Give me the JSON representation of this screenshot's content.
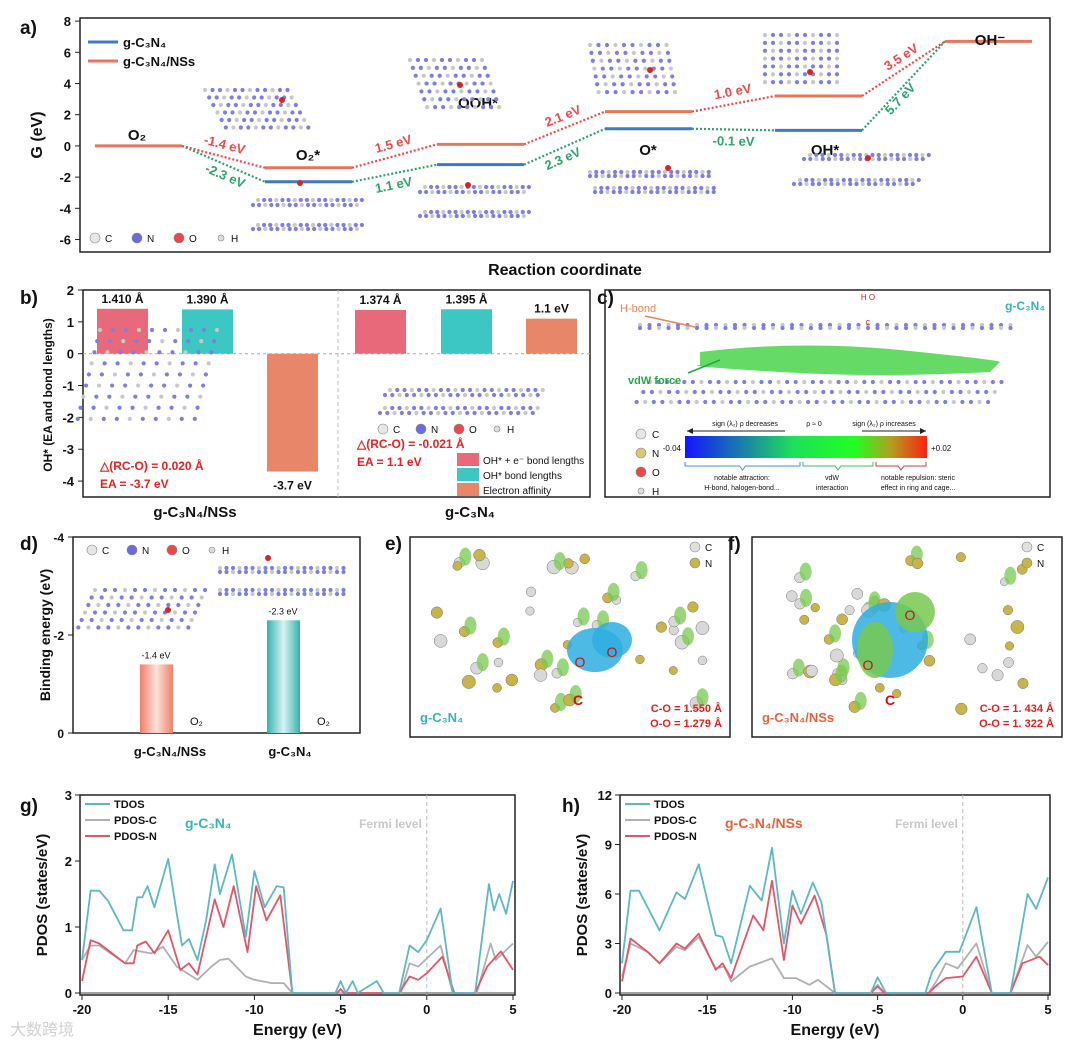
{
  "figure_labels": [
    "a)",
    "b)",
    "c)",
    "d)",
    "e)",
    "f)",
    "g)",
    "h)"
  ],
  "watermark": "大数跨境",
  "atom_legend": [
    "C",
    "N",
    "O",
    "H"
  ],
  "chart_data": [
    {
      "panel": "a",
      "type": "line",
      "title": "",
      "xlabel": "Reaction coordinate",
      "ylabel": "G (eV)",
      "ylim": [
        -6.8,
        8.2
      ],
      "yticks": [
        -6,
        -4,
        -2,
        0,
        2,
        4,
        6,
        8
      ],
      "states": [
        "O₂",
        "O₂*",
        "OOH*",
        "O*",
        "OH*",
        "OH⁻"
      ],
      "series": [
        {
          "name": "g-C₃N₄",
          "color": "#3d7cc4",
          "label_color": "#2ea36a",
          "values": [
            0,
            -2.3,
            -1.2,
            1.1,
            1.0,
            6.7
          ],
          "step_labels": [
            "-2.3 eV",
            "1.1 eV",
            "2.3 eV",
            "-0.1 eV",
            "5.7 eV"
          ]
        },
        {
          "name": "g-C₃N₄/NSs",
          "color": "#e8765c",
          "label_color": "#f0484a",
          "values": [
            0,
            -1.4,
            0.1,
            2.2,
            3.2,
            6.7
          ],
          "step_labels": [
            "-1.4 eV",
            "1.5 eV",
            "2.1 eV",
            "1.0 eV",
            "3.5 eV"
          ]
        }
      ],
      "legend": "top-left"
    },
    {
      "panel": "b",
      "type": "bar",
      "ylabel": "OH* (EA and bond lengths)",
      "ylim": [
        -4.5,
        2
      ],
      "yticks": [
        -4,
        -3,
        -2,
        -1,
        0,
        1,
        2
      ],
      "categories": [
        "g-C₃N₄/NSs",
        "g-C₃N₄"
      ],
      "series": [
        {
          "name": "OH* + e⁻ bond lengths",
          "color": "#e8697a",
          "values": [
            1.41,
            1.374
          ],
          "labels": [
            "1.410 Å",
            "1.374 Å"
          ]
        },
        {
          "name": "OH* bond lengths",
          "color": "#3cc6c4",
          "values": [
            1.39,
            1.395
          ],
          "labels": [
            "1.390 Å",
            "1.395 Å"
          ]
        },
        {
          "name": "Electron affinity",
          "color": "#e8866a",
          "values": [
            -3.7,
            1.1
          ],
          "labels": [
            "-3.7 eV",
            "1.1 eV"
          ]
        }
      ],
      "annotations": [
        [
          "△(RC-O) = 0.020 Å",
          "EA = -3.7 eV"
        ],
        [
          "△(RC-O) = -0.021 Å",
          "EA = 1.1 eV"
        ]
      ],
      "legend": "bottom-right"
    },
    {
      "panel": "d",
      "type": "bar",
      "ylabel": "Binding energy (eV)",
      "ylim": [
        0,
        -4
      ],
      "yticks": [
        0,
        -2,
        -4
      ],
      "categories": [
        "g-C₃N₄/NSs",
        "g-C₃N₄"
      ],
      "values": [
        -1.4,
        -2.3
      ],
      "labels": [
        "-1.4 eV",
        "-2.3 eV"
      ],
      "bar_note": "O₂",
      "colors": [
        "#ef8f78",
        "#4fc4c0"
      ]
    },
    {
      "panel": "g",
      "type": "line",
      "title": "g-C₃N₄",
      "title_color": "#3ab3b8",
      "xlabel": "Energy (eV)",
      "ylabel": "PDOS (states/eV)",
      "xlim": [
        -20,
        5
      ],
      "ylim": [
        0,
        3
      ],
      "xticks": [
        -20,
        -15,
        -10,
        -5,
        0,
        5
      ],
      "yticks": [
        0,
        1,
        2,
        3
      ],
      "annotation": "Fermi level",
      "series": [
        {
          "name": "TDOS",
          "color": "#5db8c4",
          "points": [
            [
              -20,
              0.5
            ],
            [
              -19.5,
              1.55
            ],
            [
              -19,
              1.55
            ],
            [
              -18.5,
              1.4
            ],
            [
              -17.6,
              0.95
            ],
            [
              -17.1,
              0.95
            ],
            [
              -16.8,
              1.45
            ],
            [
              -16.5,
              1.45
            ],
            [
              -16.2,
              1.62
            ],
            [
              -15.8,
              1.3
            ],
            [
              -15,
              2.03
            ],
            [
              -14.5,
              1.2
            ],
            [
              -14.2,
              0.72
            ],
            [
              -13.8,
              0.82
            ],
            [
              -13.3,
              0.5
            ],
            [
              -12.8,
              1.1
            ],
            [
              -12.3,
              1.95
            ],
            [
              -12,
              1.5
            ],
            [
              -11.3,
              2.1
            ],
            [
              -10.5,
              0.85
            ],
            [
              -10,
              1.85
            ],
            [
              -9.4,
              1.3
            ],
            [
              -8.7,
              1.62
            ],
            [
              -8.3,
              1.6
            ],
            [
              -7.8,
              0
            ],
            [
              -5.3,
              0
            ],
            [
              -5,
              0.18
            ],
            [
              -4.7,
              0
            ],
            [
              -4.3,
              0.18
            ],
            [
              -4,
              0
            ],
            [
              -2.9,
              0.18
            ],
            [
              -2.5,
              0
            ],
            [
              -1.6,
              0
            ],
            [
              -1,
              0.72
            ],
            [
              -0.5,
              0.62
            ],
            [
              0,
              0.8
            ],
            [
              0.8,
              1.28
            ],
            [
              1.5,
              0
            ],
            [
              2.8,
              0
            ],
            [
              3.6,
              1.65
            ],
            [
              3.9,
              1.25
            ],
            [
              4.2,
              1.5
            ],
            [
              4.6,
              1.2
            ],
            [
              5,
              1.7
            ]
          ]
        },
        {
          "name": "PDOS-C",
          "color": "#b0b0b0",
          "points": [
            [
              -20,
              0.5
            ],
            [
              -19.5,
              0.72
            ],
            [
              -19,
              0.72
            ],
            [
              -17.5,
              0.45
            ],
            [
              -17,
              0.65
            ],
            [
              -16,
              0.6
            ],
            [
              -15.3,
              0.7
            ],
            [
              -14.5,
              0.4
            ],
            [
              -13.3,
              0.2
            ],
            [
              -12.5,
              0.4
            ],
            [
              -12,
              0.5
            ],
            [
              -11.5,
              0.52
            ],
            [
              -10.5,
              0.25
            ],
            [
              -10,
              0.2
            ],
            [
              -9,
              0.15
            ],
            [
              -8.3,
              0.15
            ],
            [
              -7.8,
              0
            ],
            [
              -1.5,
              0
            ],
            [
              -1,
              0.45
            ],
            [
              -0.5,
              0.4
            ],
            [
              0.8,
              0.72
            ],
            [
              1.5,
              0
            ],
            [
              2.9,
              0
            ],
            [
              3.7,
              0.75
            ],
            [
              4,
              0.5
            ],
            [
              5,
              0.75
            ]
          ]
        },
        {
          "name": "PDOS-N",
          "color": "#e0566a",
          "points": [
            [
              -20,
              0.18
            ],
            [
              -19.5,
              0.8
            ],
            [
              -19,
              0.75
            ],
            [
              -17.5,
              0.45
            ],
            [
              -17,
              0.45
            ],
            [
              -16.8,
              0.72
            ],
            [
              -16.3,
              0.78
            ],
            [
              -15.8,
              0.6
            ],
            [
              -15,
              0.95
            ],
            [
              -14.3,
              0.35
            ],
            [
              -13.8,
              0.45
            ],
            [
              -13.3,
              0.28
            ],
            [
              -12.3,
              1.42
            ],
            [
              -11.8,
              1.0
            ],
            [
              -11.2,
              1.62
            ],
            [
              -10.4,
              0.62
            ],
            [
              -9.9,
              1.62
            ],
            [
              -9.3,
              1.1
            ],
            [
              -8.5,
              1.48
            ],
            [
              -7.8,
              0
            ],
            [
              -5.2,
              0
            ],
            [
              -5,
              0.06
            ],
            [
              -4.8,
              0
            ],
            [
              -1.6,
              0
            ],
            [
              -1,
              0.25
            ],
            [
              -0.5,
              0.2
            ],
            [
              0,
              0.3
            ],
            [
              0.9,
              0.55
            ],
            [
              1.6,
              0
            ],
            [
              2.8,
              0
            ],
            [
              3.5,
              0.4
            ],
            [
              4.3,
              0.63
            ],
            [
              5,
              0.35
            ]
          ]
        }
      ],
      "legend": "top-left"
    },
    {
      "panel": "h",
      "type": "line",
      "title": "g-C₃N₄/NSs",
      "title_color": "#e8623c",
      "xlabel": "Energy (eV)",
      "ylabel": "PDOS (states/eV)",
      "xlim": [
        -20,
        5
      ],
      "ylim": [
        0,
        12
      ],
      "xticks": [
        -20,
        -15,
        -10,
        -5,
        0,
        5
      ],
      "yticks": [
        0,
        3,
        6,
        9,
        12
      ],
      "annotation": "Fermi level",
      "series": [
        {
          "name": "TDOS",
          "color": "#5db8c4",
          "points": [
            [
              -20,
              1.8
            ],
            [
              -19.5,
              6.2
            ],
            [
              -19,
              6.2
            ],
            [
              -17.8,
              3.8
            ],
            [
              -16.8,
              6.1
            ],
            [
              -16.3,
              5.7
            ],
            [
              -15.5,
              7.8
            ],
            [
              -14.5,
              3.5
            ],
            [
              -14.1,
              3.4
            ],
            [
              -13.6,
              1.8
            ],
            [
              -12.5,
              6.5
            ],
            [
              -11.8,
              5.6
            ],
            [
              -11.2,
              8.8
            ],
            [
              -10.5,
              3.0
            ],
            [
              -10,
              6.2
            ],
            [
              -9.5,
              4.8
            ],
            [
              -8.8,
              6.7
            ],
            [
              -8.3,
              5.5
            ],
            [
              -7.5,
              0
            ],
            [
              -5.4,
              0
            ],
            [
              -5,
              0.95
            ],
            [
              -4.5,
              0
            ],
            [
              -2.2,
              0
            ],
            [
              -1.8,
              1.3
            ],
            [
              -1,
              2.5
            ],
            [
              -0.2,
              2.5
            ],
            [
              0.8,
              5.2
            ],
            [
              1.7,
              0
            ],
            [
              2.8,
              0
            ],
            [
              3.8,
              6.0
            ],
            [
              4.3,
              5.1
            ],
            [
              5,
              7.0
            ]
          ]
        },
        {
          "name": "PDOS-C",
          "color": "#b0b0b0",
          "points": [
            [
              -20,
              1.0
            ],
            [
              -19.5,
              3.0
            ],
            [
              -18.5,
              2.5
            ],
            [
              -17.8,
              1.8
            ],
            [
              -16.8,
              2.8
            ],
            [
              -16.3,
              2.6
            ],
            [
              -15.5,
              3.4
            ],
            [
              -14.5,
              1.5
            ],
            [
              -14,
              1.6
            ],
            [
              -13.6,
              0.7
            ],
            [
              -12.5,
              1.6
            ],
            [
              -11.2,
              2.1
            ],
            [
              -10.5,
              0.9
            ],
            [
              -9.8,
              0.9
            ],
            [
              -9,
              0.5
            ],
            [
              -8.5,
              0.8
            ],
            [
              -7.5,
              0
            ],
            [
              -5.4,
              0
            ],
            [
              -5,
              0.5
            ],
            [
              -4.6,
              0
            ],
            [
              -2,
              0
            ],
            [
              -1.5,
              0.8
            ],
            [
              -1,
              1.8
            ],
            [
              -0.3,
              1.5
            ],
            [
              0.8,
              3.0
            ],
            [
              1.7,
              0
            ],
            [
              2.8,
              0
            ],
            [
              3.8,
              2.9
            ],
            [
              4.3,
              2.2
            ],
            [
              5,
              3.1
            ]
          ]
        },
        {
          "name": "PDOS-N",
          "color": "#e0566a",
          "points": [
            [
              -20,
              0.7
            ],
            [
              -19.5,
              3.3
            ],
            [
              -18.5,
              2.5
            ],
            [
              -17.8,
              1.8
            ],
            [
              -16.8,
              3.0
            ],
            [
              -16.3,
              2.7
            ],
            [
              -15.5,
              3.6
            ],
            [
              -14.5,
              1.4
            ],
            [
              -14.1,
              1.8
            ],
            [
              -13.6,
              0.9
            ],
            [
              -12.3,
              4.7
            ],
            [
              -11.7,
              3.8
            ],
            [
              -11.2,
              6.8
            ],
            [
              -10.5,
              2.0
            ],
            [
              -10,
              5.3
            ],
            [
              -9.5,
              4.2
            ],
            [
              -8.7,
              5.9
            ],
            [
              -8,
              3.5
            ],
            [
              -7.5,
              0
            ],
            [
              -5.4,
              0
            ],
            [
              -5,
              0.4
            ],
            [
              -4.6,
              0
            ],
            [
              -2,
              0
            ],
            [
              -1.5,
              0.5
            ],
            [
              -1,
              0.9
            ],
            [
              0,
              1.0
            ],
            [
              0.8,
              2.2
            ],
            [
              1.7,
              0
            ],
            [
              2.8,
              0
            ],
            [
              3.5,
              1.8
            ],
            [
              4.5,
              2.2
            ],
            [
              5,
              1.7
            ]
          ]
        }
      ],
      "legend": "top-left"
    }
  ],
  "panel_c": {
    "title": "g-C₃N₄",
    "hbond": "H-bond",
    "vdw": "vdW force",
    "adsorbate": "H O",
    "adsorbate_c": "C",
    "arrow_left": "sign (λ₂) ρ decreases",
    "arrow_mid": "ρ ≈ 0",
    "arrow_right": "sign (λ₂) ρ increases",
    "scale_min": "-0.04",
    "scale_max": "+0.02",
    "regions": [
      [
        "notable attraction:",
        "H-bond, halogen-bond..."
      ],
      [
        "vdW",
        "interaction"
      ],
      [
        "notable repulsion: steric",
        "effect in ring and cage..."
      ]
    ]
  },
  "panel_e": {
    "title": "g-C₃N₄",
    "title_color": "#3ab3b8",
    "bonds": [
      "C-O = 1.550 Å",
      "O-O = 1.279 Å"
    ],
    "atoms": [
      "C",
      "N"
    ],
    "labels": [
      "O",
      "O",
      "C"
    ]
  },
  "panel_f": {
    "title": "g-C₃N₄/NSs",
    "title_color": "#e8623c",
    "bonds": [
      "C-O = 1. 434 Å",
      "O-O = 1. 322 Å"
    ],
    "atoms": [
      "C",
      "N"
    ],
    "labels": [
      "O",
      "O",
      "C"
    ]
  }
}
